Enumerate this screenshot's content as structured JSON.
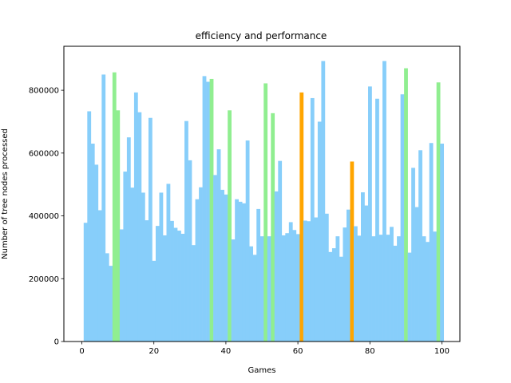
{
  "chart_data": {
    "type": "bar",
    "title": "efficiency and performance",
    "xlabel": "Games",
    "ylabel": "Number of tree nodes processed",
    "xlim": [
      -5,
      105
    ],
    "ylim": [
      0,
      940000
    ],
    "x_ticks": [
      0,
      20,
      40,
      60,
      80,
      100
    ],
    "y_ticks": [
      0,
      200000,
      400000,
      600000,
      800000
    ],
    "grid": false,
    "colors": {
      "default": "#87CEFA",
      "green": "#90EE90",
      "orange": "#FFA500"
    },
    "x": [
      1,
      2,
      3,
      4,
      5,
      6,
      7,
      8,
      9,
      10,
      11,
      12,
      13,
      14,
      15,
      16,
      17,
      18,
      19,
      20,
      21,
      22,
      23,
      24,
      25,
      26,
      27,
      28,
      29,
      30,
      31,
      32,
      33,
      34,
      35,
      36,
      37,
      38,
      39,
      40,
      41,
      42,
      43,
      44,
      45,
      46,
      47,
      48,
      49,
      50,
      51,
      52,
      53,
      54,
      55,
      56,
      57,
      58,
      59,
      60,
      61,
      62,
      63,
      64,
      65,
      66,
      67,
      68,
      69,
      70,
      71,
      72,
      73,
      74,
      75,
      76,
      77,
      78,
      79,
      80,
      81,
      82,
      83,
      84,
      85,
      86,
      87,
      88,
      89,
      90,
      91,
      92,
      93,
      94,
      95,
      96,
      97,
      98,
      99,
      100
    ],
    "values": [
      378000,
      733000,
      630000,
      563000,
      418000,
      850000,
      281000,
      241000,
      857000,
      736000,
      357000,
      541000,
      650000,
      490000,
      793000,
      730000,
      474000,
      386000,
      712000,
      257000,
      368000,
      474000,
      338000,
      502000,
      384000,
      362000,
      353000,
      343000,
      702000,
      577000,
      307000,
      453000,
      491000,
      845000,
      827000,
      836000,
      530000,
      612000,
      483000,
      468000,
      736000,
      325000,
      453000,
      445000,
      440000,
      640000,
      303000,
      276000,
      422000,
      335000,
      822000,
      335000,
      727000,
      478000,
      575000,
      338000,
      345000,
      380000,
      355000,
      342000,
      793000,
      385000,
      383000,
      775000,
      395000,
      700000,
      893000,
      407000,
      285000,
      297000,
      335000,
      270000,
      363000,
      420000,
      573000,
      367000,
      337000,
      475000,
      433000,
      812000,
      335000,
      773000,
      340000,
      893000,
      340000,
      365000,
      305000,
      335000,
      787000,
      870000,
      283000,
      553000,
      428000,
      609000,
      335000,
      317000,
      632000,
      350000,
      825000,
      630000
    ],
    "bar_colors": [
      "default",
      "default",
      "default",
      "default",
      "default",
      "default",
      "default",
      "default",
      "green",
      "green",
      "default",
      "default",
      "default",
      "default",
      "default",
      "default",
      "default",
      "default",
      "default",
      "default",
      "default",
      "default",
      "default",
      "default",
      "default",
      "default",
      "default",
      "default",
      "default",
      "default",
      "default",
      "default",
      "default",
      "default",
      "default",
      "green",
      "default",
      "default",
      "default",
      "default",
      "green",
      "default",
      "default",
      "default",
      "default",
      "default",
      "default",
      "default",
      "default",
      "default",
      "green",
      "default",
      "green",
      "default",
      "default",
      "default",
      "default",
      "default",
      "default",
      "default",
      "orange",
      "default",
      "default",
      "default",
      "default",
      "default",
      "default",
      "default",
      "default",
      "default",
      "default",
      "default",
      "default",
      "default",
      "orange",
      "default",
      "default",
      "default",
      "default",
      "default",
      "default",
      "default",
      "default",
      "default",
      "default",
      "default",
      "default",
      "default",
      "default",
      "green",
      "default",
      "default",
      "default",
      "default",
      "default",
      "default",
      "default",
      "default",
      "green",
      "default"
    ]
  }
}
